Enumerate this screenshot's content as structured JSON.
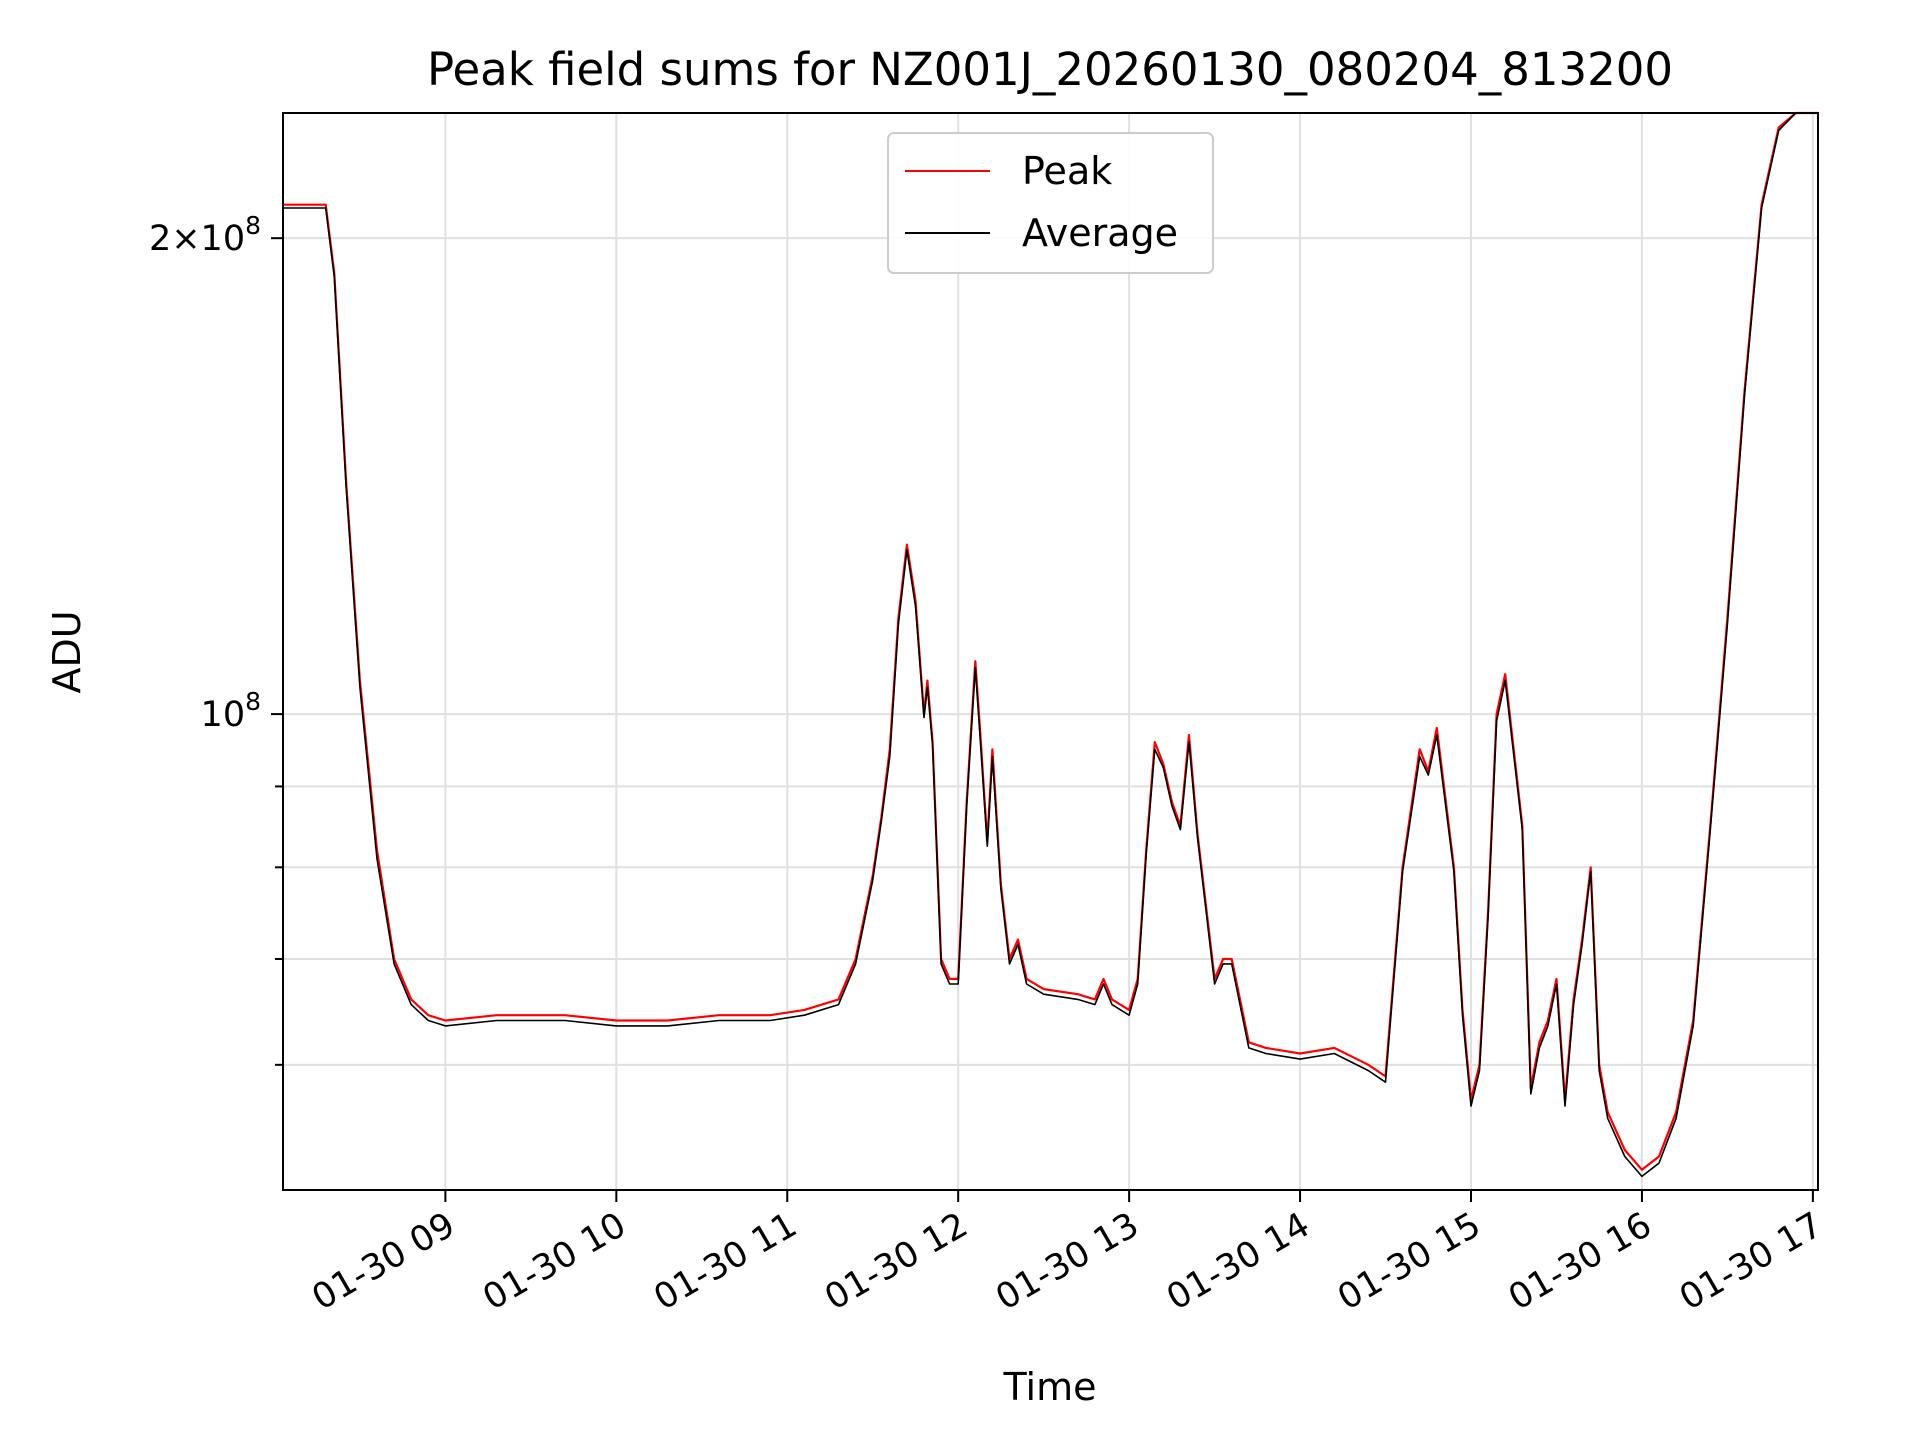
{
  "chart_data": {
    "type": "line",
    "title": "Peak field sums for NZ001J_20260130_080204_813200",
    "xlabel": "Time",
    "ylabel": "ADU",
    "x_unit": "hours (decimal, 2026-01-30)",
    "xlim": [
      8.05,
      17.03
    ],
    "ylim": [
      50000000,
      240000000
    ],
    "yscale": "log",
    "x_ticks": [
      {
        "value": 9,
        "label": "01-30 09"
      },
      {
        "value": 10,
        "label": "01-30 10"
      },
      {
        "value": 11,
        "label": "01-30 11"
      },
      {
        "value": 12,
        "label": "01-30 12"
      },
      {
        "value": 13,
        "label": "01-30 13"
      },
      {
        "value": 14,
        "label": "01-30 14"
      },
      {
        "value": 15,
        "label": "01-30 15"
      },
      {
        "value": 16,
        "label": "01-30 16"
      },
      {
        "value": 17,
        "label": "01-30 17"
      }
    ],
    "y_major_ticks": [
      {
        "value": 100000000,
        "mantissa": "",
        "base": "10",
        "exp": "8"
      },
      {
        "value": 200000000,
        "mantissa": "2×",
        "base": "10",
        "exp": "8"
      }
    ],
    "y_minor_ticks": [
      60000000,
      70000000,
      80000000,
      90000000
    ],
    "grid": true,
    "legend_position": "upper-center",
    "series": [
      {
        "name": "Peak",
        "color": "#ff0000",
        "x": [
          8.05,
          8.2,
          8.3,
          8.35,
          8.42,
          8.5,
          8.6,
          8.7,
          8.8,
          8.9,
          9.0,
          9.3,
          9.7,
          10.0,
          10.3,
          10.6,
          10.9,
          11.1,
          11.3,
          11.4,
          11.5,
          11.55,
          11.6,
          11.65,
          11.7,
          11.75,
          11.8,
          11.82,
          11.85,
          11.9,
          11.95,
          12.0,
          12.05,
          12.1,
          12.13,
          12.17,
          12.2,
          12.25,
          12.3,
          12.35,
          12.4,
          12.5,
          12.7,
          12.8,
          12.85,
          12.9,
          13.0,
          13.05,
          13.1,
          13.15,
          13.2,
          13.25,
          13.3,
          13.35,
          13.4,
          13.5,
          13.55,
          13.6,
          13.7,
          13.8,
          14.0,
          14.2,
          14.4,
          14.5,
          14.6,
          14.7,
          14.75,
          14.8,
          14.9,
          14.95,
          15.0,
          15.05,
          15.1,
          15.15,
          15.2,
          15.3,
          15.35,
          15.4,
          15.45,
          15.5,
          15.55,
          15.6,
          15.65,
          15.7,
          15.75,
          15.8,
          15.9,
          16.0,
          16.1,
          16.2,
          16.3,
          16.4,
          16.5,
          16.6,
          16.7,
          16.8,
          16.9,
          16.95,
          17.03
        ],
        "values": [
          210000000,
          210000000,
          210000000,
          190000000,
          140000000,
          105000000,
          82000000,
          70000000,
          66000000,
          64500000,
          64000000,
          64500000,
          64500000,
          64000000,
          64000000,
          64500000,
          64500000,
          65000000,
          66000000,
          70000000,
          79000000,
          86000000,
          95000000,
          115000000,
          128000000,
          118000000,
          100000000,
          105000000,
          96000000,
          70000000,
          68000000,
          68000000,
          88000000,
          108000000,
          97000000,
          83000000,
          95000000,
          78000000,
          70000000,
          72000000,
          68000000,
          67000000,
          66500000,
          66000000,
          68000000,
          66000000,
          65000000,
          68000000,
          82000000,
          96000000,
          93000000,
          88000000,
          85000000,
          97000000,
          84000000,
          68000000,
          70000000,
          70000000,
          62000000,
          61500000,
          61000000,
          61500000,
          60000000,
          59000000,
          80000000,
          95000000,
          92000000,
          98000000,
          80000000,
          65000000,
          57000000,
          60000000,
          75000000,
          100000000,
          106000000,
          85000000,
          58000000,
          62000000,
          64000000,
          68000000,
          57000000,
          66000000,
          72000000,
          80000000,
          60000000,
          56000000,
          53000000,
          51500000,
          52500000,
          56000000,
          64000000,
          85000000,
          115000000,
          160000000,
          210000000,
          235000000,
          240000000,
          240000000,
          240000000
        ]
      },
      {
        "name": "Average",
        "color": "#000000",
        "x": [
          8.05,
          8.2,
          8.3,
          8.35,
          8.42,
          8.5,
          8.6,
          8.7,
          8.8,
          8.9,
          9.0,
          9.3,
          9.7,
          10.0,
          10.3,
          10.6,
          10.9,
          11.1,
          11.3,
          11.4,
          11.5,
          11.55,
          11.6,
          11.65,
          11.7,
          11.75,
          11.8,
          11.82,
          11.85,
          11.9,
          11.95,
          12.0,
          12.05,
          12.1,
          12.13,
          12.17,
          12.2,
          12.25,
          12.3,
          12.35,
          12.4,
          12.5,
          12.7,
          12.8,
          12.85,
          12.9,
          13.0,
          13.05,
          13.1,
          13.15,
          13.2,
          13.25,
          13.3,
          13.35,
          13.4,
          13.5,
          13.55,
          13.6,
          13.7,
          13.8,
          14.0,
          14.2,
          14.4,
          14.5,
          14.6,
          14.7,
          14.75,
          14.8,
          14.9,
          14.95,
          15.0,
          15.05,
          15.1,
          15.15,
          15.2,
          15.3,
          15.35,
          15.4,
          15.45,
          15.5,
          15.55,
          15.6,
          15.65,
          15.7,
          15.75,
          15.8,
          15.9,
          16.0,
          16.1,
          16.2,
          16.3,
          16.4,
          16.5,
          16.6,
          16.7,
          16.8,
          16.9,
          16.95,
          17.03
        ],
        "values": [
          209000000,
          209000000,
          209000000,
          189000000,
          139000000,
          104000000,
          81000000,
          69500000,
          65500000,
          64000000,
          63500000,
          64000000,
          64000000,
          63500000,
          63500000,
          64000000,
          64000000,
          64500000,
          65500000,
          69500000,
          78500000,
          85500000,
          94000000,
          114000000,
          127000000,
          117000000,
          99500000,
          104000000,
          95500000,
          69500000,
          67500000,
          67500000,
          87500000,
          107000000,
          96000000,
          82500000,
          94000000,
          77500000,
          69500000,
          71500000,
          67500000,
          66500000,
          66000000,
          65500000,
          67500000,
          65500000,
          64500000,
          67500000,
          81500000,
          95000000,
          92500000,
          87500000,
          84500000,
          96000000,
          83500000,
          67500000,
          69500000,
          69500000,
          61500000,
          61000000,
          60500000,
          61000000,
          59500000,
          58500000,
          79500000,
          94000000,
          91500000,
          97000000,
          79500000,
          64500000,
          56500000,
          59500000,
          74500000,
          99000000,
          105000000,
          84500000,
          57500000,
          61500000,
          63500000,
          67500000,
          56500000,
          65500000,
          71500000,
          79500000,
          59500000,
          55500000,
          52500000,
          51000000,
          52000000,
          55500000,
          63500000,
          84500000,
          114000000,
          159000000,
          209000000,
          234000000,
          240000000,
          240000000,
          240000000
        ]
      }
    ]
  }
}
